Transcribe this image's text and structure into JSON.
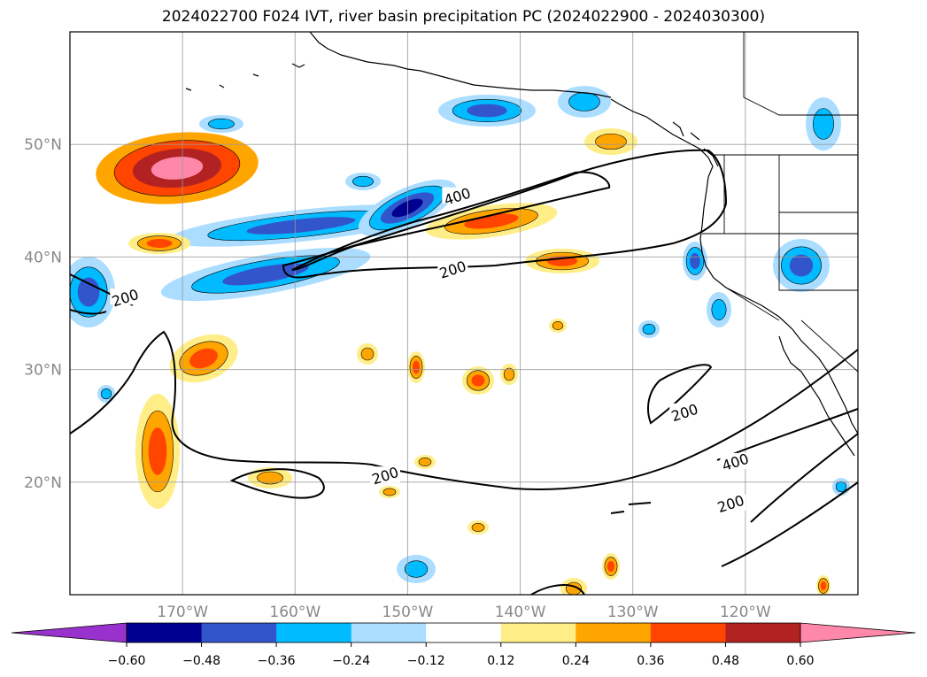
{
  "title": "2024022700 F024 IVT, river basin precipitation PC (2024022900 - 2024030300)",
  "map": {
    "lon_range": [
      -180,
      -110
    ],
    "lat_range": [
      10,
      60
    ],
    "lat_ticks": [
      {
        "value": 50,
        "label": "50°N"
      },
      {
        "value": 40,
        "label": "40°N"
      },
      {
        "value": 30,
        "label": "30°N"
      },
      {
        "value": 20,
        "label": "20°N"
      }
    ],
    "lon_ticks": [
      {
        "value": -170,
        "label": "170°W"
      },
      {
        "value": -160,
        "label": "160°W"
      },
      {
        "value": -150,
        "label": "150°W"
      },
      {
        "value": -140,
        "label": "140°W"
      },
      {
        "value": -130,
        "label": "130°W"
      },
      {
        "value": -120,
        "label": "120°W"
      }
    ],
    "grid": true
  },
  "ivt_contours": {
    "levels": [
      200,
      400
    ],
    "labels": [
      {
        "text": "400",
        "lon": -145.6,
        "lat": 45.4
      },
      {
        "text": "200",
        "lon": -146.0,
        "lat": 38.9
      },
      {
        "text": "200",
        "lon": -175.1,
        "lat": 36.4
      },
      {
        "text": "200",
        "lon": -152.0,
        "lat": 20.6
      },
      {
        "text": "200",
        "lon": -125.4,
        "lat": 26.2
      },
      {
        "text": "400",
        "lon": -120.9,
        "lat": 21.8
      },
      {
        "text": "200",
        "lon": -121.3,
        "lat": 18.1
      }
    ]
  },
  "colorbar": {
    "ticks": [
      "−0.60",
      "−0.48",
      "−0.36",
      "−0.24",
      "−0.12",
      "0.12",
      "0.24",
      "0.36",
      "0.48",
      "0.60"
    ],
    "under_color": "#9932CC",
    "over_color": "#FF88AA",
    "colors": [
      "#000090",
      "#3355CC",
      "#00BBFF",
      "#AADDFF",
      "#FFFFFF",
      "#FFEE88",
      "#FFA500",
      "#FF4500",
      "#B22222",
      "#FF88AA"
    ]
  }
}
